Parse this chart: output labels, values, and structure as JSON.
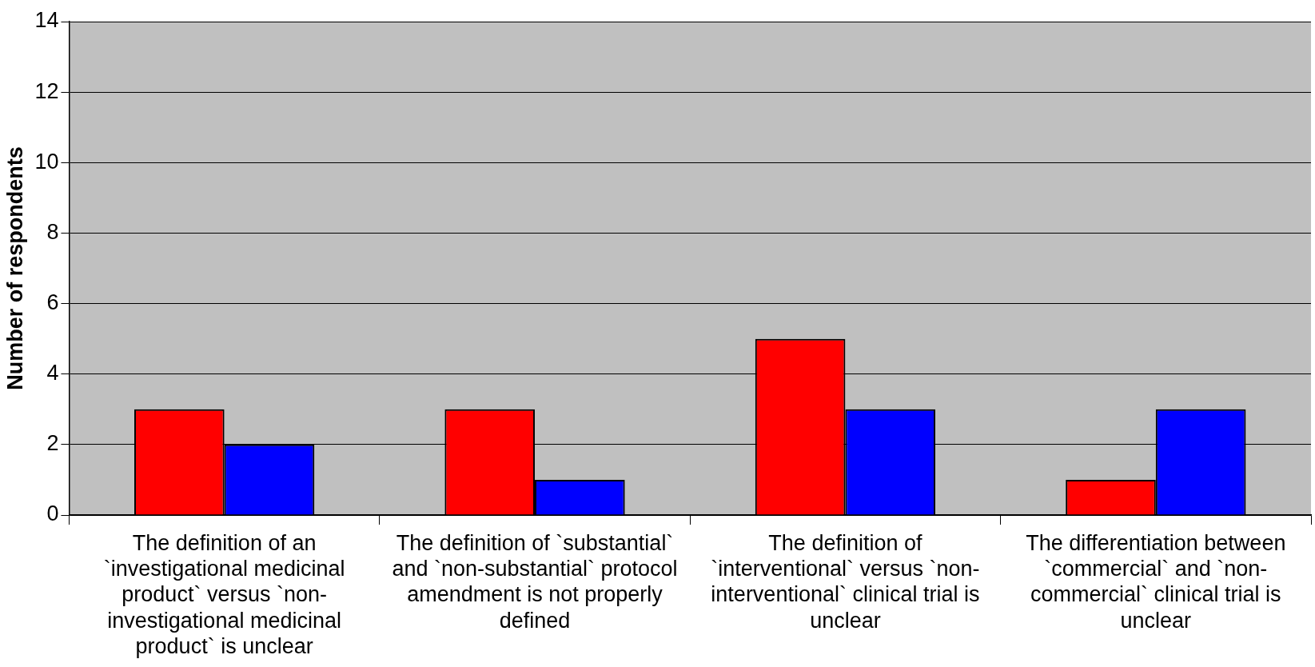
{
  "chart_data": {
    "type": "bar",
    "ylabel": "Number of respondents",
    "categories": [
      "The definition of an `investigational medicinal product` versus `non-investigational medicinal product` is unclear",
      "The definition of `substantial` and `non-substantial` protocol amendment is not properly defined",
      "The definition of `interventional` versus `non-interventional` clinical trial is unclear",
      "The differentiation between `commercial` and `non-commercial` clinical trial is unclear"
    ],
    "series": [
      {
        "color": "#ff0000",
        "values": [
          3,
          3,
          5,
          1
        ]
      },
      {
        "color": "#0000ff",
        "values": [
          2,
          1,
          3,
          3
        ]
      }
    ],
    "ylim": [
      0,
      14
    ],
    "yticks": [
      0,
      2,
      4,
      6,
      8,
      10,
      12,
      14
    ],
    "grid": "y"
  }
}
